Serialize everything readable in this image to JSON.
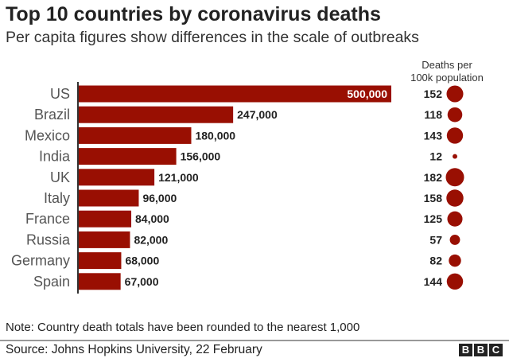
{
  "chart_data": {
    "type": "bar",
    "orientation": "horizontal",
    "title": "Top 10 countries by coronavirus deaths",
    "subtitle": "Per capita figures show differences in the scale of outbreaks",
    "categories": [
      "US",
      "Brazil",
      "Mexico",
      "India",
      "UK",
      "Italy",
      "France",
      "Russia",
      "Germany",
      "Spain"
    ],
    "values": [
      500000,
      247000,
      180000,
      156000,
      121000,
      96000,
      84000,
      82000,
      68000,
      67000
    ],
    "value_labels": [
      "500,000",
      "247,000",
      "180,000",
      "156,000",
      "121,000",
      "96,000",
      "84,000",
      "82,000",
      "68,000",
      "67,000"
    ],
    "per_capita": {
      "header": "Deaths per 100k population",
      "header_lines": [
        "Deaths per",
        "100k population"
      ],
      "values": [
        152,
        118,
        143,
        12,
        182,
        158,
        125,
        57,
        82,
        144
      ],
      "mark": "circle-area"
    },
    "bar_color": "#990f02",
    "grid": false
  },
  "footer": {
    "note": "Note: Country death totals have been rounded to the nearest 1,000",
    "source": "Source: Johns Hopkins University, 22 February",
    "logo": [
      "B",
      "B",
      "C"
    ]
  }
}
